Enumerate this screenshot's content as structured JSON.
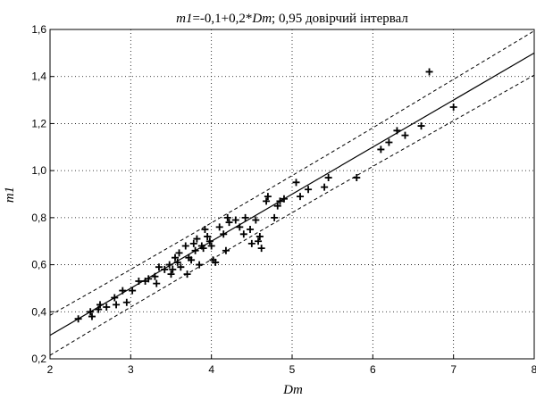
{
  "title": {
    "part1": "m1",
    "part2": "=-0,1+0,2*",
    "part3": "Dm",
    "part4": "; 0,95 довірчий інтервал"
  },
  "chart_data": {
    "type": "scatter",
    "title": "m1=-0,1+0,2*Dm; 0,95 довірчий інтервал",
    "xlabel": "Dm",
    "ylabel": "m1",
    "xlim": [
      2,
      8
    ],
    "ylim": [
      0.2,
      1.6
    ],
    "xticks": [
      2,
      3,
      4,
      5,
      6,
      7,
      8
    ],
    "xtick_labels": [
      "2",
      "3",
      "4",
      "5",
      "6",
      "7",
      "8"
    ],
    "yticks": [
      0.2,
      0.4,
      0.6,
      0.8,
      1.0,
      1.2,
      1.4,
      1.6
    ],
    "ytick_labels": [
      "0,2",
      "0,4",
      "0,6",
      "0,8",
      "1,0",
      "1,2",
      "1,4",
      "1,6"
    ],
    "grid": "dotted",
    "marker": "plus",
    "fit": {
      "intercept": -0.1,
      "slope": 0.2
    },
    "confidence_level": 0.95,
    "band": {
      "x": [
        2,
        2.5,
        3,
        3.5,
        4,
        4.5,
        5,
        5.5,
        6,
        6.5,
        7,
        7.5,
        8
      ],
      "half_width": [
        0.085,
        0.082,
        0.08,
        0.079,
        0.078,
        0.078,
        0.079,
        0.08,
        0.082,
        0.085,
        0.088,
        0.091,
        0.094
      ]
    },
    "points": [
      [
        2.35,
        0.37
      ],
      [
        2.5,
        0.4
      ],
      [
        2.52,
        0.38
      ],
      [
        2.6,
        0.41
      ],
      [
        2.62,
        0.43
      ],
      [
        2.7,
        0.42
      ],
      [
        2.8,
        0.46
      ],
      [
        2.82,
        0.43
      ],
      [
        2.9,
        0.49
      ],
      [
        2.95,
        0.44
      ],
      [
        3.02,
        0.49
      ],
      [
        3.1,
        0.53
      ],
      [
        3.18,
        0.53
      ],
      [
        3.22,
        0.54
      ],
      [
        3.3,
        0.55
      ],
      [
        3.32,
        0.52
      ],
      [
        3.35,
        0.59
      ],
      [
        3.42,
        0.58
      ],
      [
        3.48,
        0.6
      ],
      [
        3.5,
        0.56
      ],
      [
        3.52,
        0.58
      ],
      [
        3.55,
        0.63
      ],
      [
        3.58,
        0.61
      ],
      [
        3.6,
        0.65
      ],
      [
        3.62,
        0.59
      ],
      [
        3.68,
        0.68
      ],
      [
        3.7,
        0.56
      ],
      [
        3.72,
        0.63
      ],
      [
        3.75,
        0.62
      ],
      [
        3.78,
        0.69
      ],
      [
        3.8,
        0.66
      ],
      [
        3.82,
        0.71
      ],
      [
        3.85,
        0.6
      ],
      [
        3.88,
        0.68
      ],
      [
        3.9,
        0.67
      ],
      [
        3.92,
        0.75
      ],
      [
        3.95,
        0.72
      ],
      [
        3.98,
        0.7
      ],
      [
        4.0,
        0.68
      ],
      [
        4.02,
        0.62
      ],
      [
        4.05,
        0.61
      ],
      [
        4.1,
        0.76
      ],
      [
        4.15,
        0.73
      ],
      [
        4.18,
        0.66
      ],
      [
        4.2,
        0.8
      ],
      [
        4.22,
        0.78
      ],
      [
        4.3,
        0.79
      ],
      [
        4.35,
        0.76
      ],
      [
        4.4,
        0.73
      ],
      [
        4.42,
        0.8
      ],
      [
        4.48,
        0.75
      ],
      [
        4.5,
        0.69
      ],
      [
        4.55,
        0.79
      ],
      [
        4.58,
        0.7
      ],
      [
        4.6,
        0.72
      ],
      [
        4.62,
        0.67
      ],
      [
        4.68,
        0.87
      ],
      [
        4.7,
        0.89
      ],
      [
        4.78,
        0.8
      ],
      [
        4.82,
        0.85
      ],
      [
        4.85,
        0.87
      ],
      [
        4.9,
        0.88
      ],
      [
        5.05,
        0.95
      ],
      [
        5.1,
        0.89
      ],
      [
        5.2,
        0.92
      ],
      [
        5.4,
        0.93
      ],
      [
        5.45,
        0.97
      ],
      [
        5.8,
        0.97
      ],
      [
        6.1,
        1.09
      ],
      [
        6.2,
        1.12
      ],
      [
        6.3,
        1.17
      ],
      [
        6.4,
        1.15
      ],
      [
        6.6,
        1.19
      ],
      [
        6.7,
        1.42
      ],
      [
        7.0,
        1.27
      ]
    ]
  }
}
